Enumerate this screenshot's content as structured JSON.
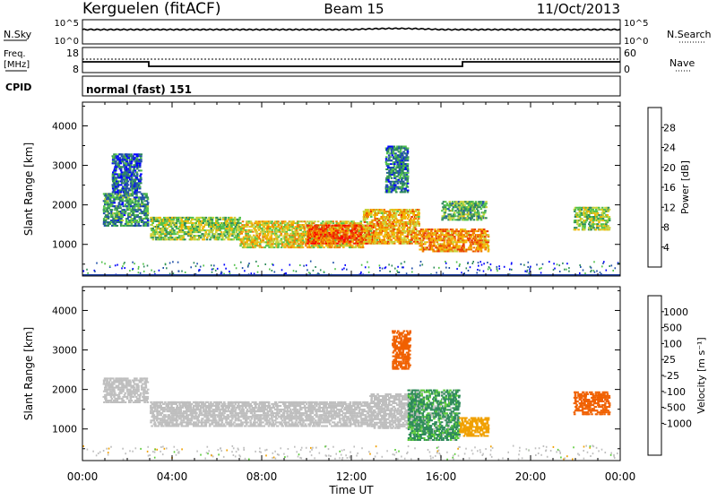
{
  "header": {
    "station": "Kerguelen (fitACF)",
    "beam": "Beam 15",
    "date": "11/Oct/2013"
  },
  "status_panels": {
    "nsky_label": "N.Sky",
    "nsearch_label": "N.Search",
    "freq_label_1": "Freq.",
    "freq_label_2": "[MHz]",
    "nave_label": "Nave",
    "cpid_label": "CPID",
    "cpid_value": "normal (fast) 151",
    "left_ticks_noise": [
      "10^5",
      "10^0"
    ],
    "right_ticks_noise": [
      "10^5",
      "10^0"
    ],
    "left_ticks_freq": [
      "18",
      "8"
    ],
    "right_ticks_freq": [
      "60",
      "0"
    ]
  },
  "colors": {
    "power_scale": [
      "#0000ff",
      "#1f4fa8",
      "#2e8a5a",
      "#52c24a",
      "#c8d23a",
      "#f4b400",
      "#f07a00",
      "#e83a00",
      "#ff0000"
    ],
    "velocity_scale": [
      "#2040b0",
      "#3f7fc0",
      "#2e8a5a",
      "#5ccc3a",
      "#bebebe",
      "#bebebe",
      "#f0a000",
      "#f06000",
      "#e02000",
      "#ff0000"
    ]
  },
  "chart_data": [
    {
      "type": "heatmap",
      "title": "",
      "ylabel": "Slant Range [km]",
      "xlabel": "",
      "x_ticks": [
        "00:00",
        "04:00",
        "08:00",
        "12:00",
        "16:00",
        "20:00",
        "00:00"
      ],
      "y_ticks": [
        "1000",
        "2000",
        "3000",
        "4000"
      ],
      "xlim_hours": [
        0,
        24
      ],
      "ylim_km": [
        200,
        4600
      ],
      "colorbar_label": "Power [dB]",
      "colorbar_ticks": [
        "4",
        "8",
        "12",
        "16",
        "20",
        "24",
        "28"
      ],
      "colorbar_range": [
        0,
        32
      ],
      "echo_regions": [
        {
          "t0": 0.9,
          "t1": 2.9,
          "r0": 1450,
          "r1": 2300,
          "value": 9
        },
        {
          "t0": 1.3,
          "t1": 2.6,
          "r0": 2300,
          "r1": 3300,
          "value": 6
        },
        {
          "t0": 3.0,
          "t1": 7.0,
          "r0": 1100,
          "r1": 1700,
          "value": 14
        },
        {
          "t0": 7.0,
          "t1": 12.5,
          "r0": 900,
          "r1": 1600,
          "value": 18
        },
        {
          "t0": 10.0,
          "t1": 13.0,
          "r0": 1000,
          "r1": 1500,
          "value": 26
        },
        {
          "t0": 12.5,
          "t1": 15.0,
          "r0": 1000,
          "r1": 1900,
          "value": 20
        },
        {
          "t0": 13.5,
          "t1": 14.5,
          "r0": 2300,
          "r1": 3500,
          "value": 8
        },
        {
          "t0": 15.0,
          "t1": 18.1,
          "r0": 800,
          "r1": 1400,
          "value": 22
        },
        {
          "t0": 16.0,
          "t1": 18.0,
          "r0": 1600,
          "r1": 2100,
          "value": 12
        },
        {
          "t0": 21.9,
          "t1": 23.5,
          "r0": 1350,
          "r1": 1950,
          "value": 14
        }
      ]
    },
    {
      "type": "heatmap",
      "title": "",
      "ylabel": "Slant Range [km]",
      "xlabel": "Time UT",
      "x_ticks": [
        "00:00",
        "04:00",
        "08:00",
        "12:00",
        "16:00",
        "20:00",
        "00:00"
      ],
      "y_ticks": [
        "1000",
        "2000",
        "3000",
        "4000"
      ],
      "xlim_hours": [
        0,
        24
      ],
      "ylim_km": [
        200,
        4600
      ],
      "colorbar_label": "Velocity [m s⁻¹]",
      "colorbar_ticks": [
        "1000",
        "500",
        "100",
        "25",
        "-25",
        "-100",
        "-500",
        "-1000"
      ],
      "echo_regions": [
        {
          "t0": 0.9,
          "t1": 2.9,
          "r0": 1650,
          "r1": 2300,
          "value": 0
        },
        {
          "t0": 3.0,
          "t1": 12.8,
          "r0": 1050,
          "r1": 1700,
          "value": 0
        },
        {
          "t0": 12.8,
          "t1": 15.0,
          "r0": 1000,
          "r1": 1900,
          "value": 0
        },
        {
          "t0": 13.8,
          "t1": 14.6,
          "r0": 2500,
          "r1": 3500,
          "value": -300
        },
        {
          "t0": 14.5,
          "t1": 16.8,
          "r0": 700,
          "r1": 2000,
          "value": 150
        },
        {
          "t0": 16.8,
          "t1": 18.1,
          "r0": 800,
          "r1": 1300,
          "value": -50
        },
        {
          "t0": 21.9,
          "t1": 23.5,
          "r0": 1350,
          "r1": 1950,
          "value": -300
        }
      ]
    }
  ]
}
